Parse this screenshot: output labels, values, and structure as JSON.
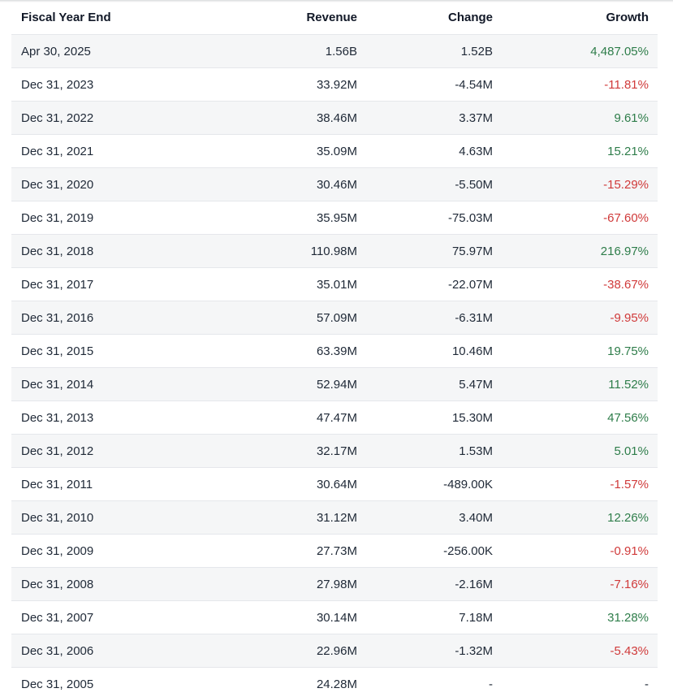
{
  "colors": {
    "positive": "#2e7d4a",
    "negative": "#d03a3a"
  },
  "table": {
    "headers": {
      "fiscal_year_end": "Fiscal Year End",
      "revenue": "Revenue",
      "change": "Change",
      "growth": "Growth"
    },
    "rows": [
      {
        "date": "Apr 30, 2025",
        "revenue": "1.56B",
        "change": "1.52B",
        "growth": "4,487.05%",
        "trend": "pos"
      },
      {
        "date": "Dec 31, 2023",
        "revenue": "33.92M",
        "change": "-4.54M",
        "growth": "-11.81%",
        "trend": "neg"
      },
      {
        "date": "Dec 31, 2022",
        "revenue": "38.46M",
        "change": "3.37M",
        "growth": "9.61%",
        "trend": "pos"
      },
      {
        "date": "Dec 31, 2021",
        "revenue": "35.09M",
        "change": "4.63M",
        "growth": "15.21%",
        "trend": "pos"
      },
      {
        "date": "Dec 31, 2020",
        "revenue": "30.46M",
        "change": "-5.50M",
        "growth": "-15.29%",
        "trend": "neg"
      },
      {
        "date": "Dec 31, 2019",
        "revenue": "35.95M",
        "change": "-75.03M",
        "growth": "-67.60%",
        "trend": "neg"
      },
      {
        "date": "Dec 31, 2018",
        "revenue": "110.98M",
        "change": "75.97M",
        "growth": "216.97%",
        "trend": "pos"
      },
      {
        "date": "Dec 31, 2017",
        "revenue": "35.01M",
        "change": "-22.07M",
        "growth": "-38.67%",
        "trend": "neg"
      },
      {
        "date": "Dec 31, 2016",
        "revenue": "57.09M",
        "change": "-6.31M",
        "growth": "-9.95%",
        "trend": "neg"
      },
      {
        "date": "Dec 31, 2015",
        "revenue": "63.39M",
        "change": "10.46M",
        "growth": "19.75%",
        "trend": "pos"
      },
      {
        "date": "Dec 31, 2014",
        "revenue": "52.94M",
        "change": "5.47M",
        "growth": "11.52%",
        "trend": "pos"
      },
      {
        "date": "Dec 31, 2013",
        "revenue": "47.47M",
        "change": "15.30M",
        "growth": "47.56%",
        "trend": "pos"
      },
      {
        "date": "Dec 31, 2012",
        "revenue": "32.17M",
        "change": "1.53M",
        "growth": "5.01%",
        "trend": "pos"
      },
      {
        "date": "Dec 31, 2011",
        "revenue": "30.64M",
        "change": "-489.00K",
        "growth": "-1.57%",
        "trend": "neg"
      },
      {
        "date": "Dec 31, 2010",
        "revenue": "31.12M",
        "change": "3.40M",
        "growth": "12.26%",
        "trend": "pos"
      },
      {
        "date": "Dec 31, 2009",
        "revenue": "27.73M",
        "change": "-256.00K",
        "growth": "-0.91%",
        "trend": "neg"
      },
      {
        "date": "Dec 31, 2008",
        "revenue": "27.98M",
        "change": "-2.16M",
        "growth": "-7.16%",
        "trend": "neg"
      },
      {
        "date": "Dec 31, 2007",
        "revenue": "30.14M",
        "change": "7.18M",
        "growth": "31.28%",
        "trend": "pos"
      },
      {
        "date": "Dec 31, 2006",
        "revenue": "22.96M",
        "change": "-1.32M",
        "growth": "-5.43%",
        "trend": "neg"
      },
      {
        "date": "Dec 31, 2005",
        "revenue": "24.28M",
        "change": "-",
        "growth": "-",
        "trend": "neutral"
      }
    ]
  }
}
